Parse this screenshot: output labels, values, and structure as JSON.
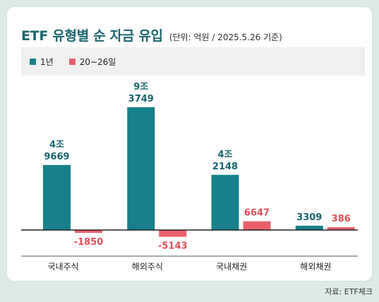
{
  "title": "ETF 유형별 순 자금 유입",
  "subtitle": "(단위: 억원 / 2025.5.26 기준)",
  "source": "자료: ETF체크",
  "colors": {
    "background": "#dcebe8",
    "series_1y": "#17808a",
    "series_recent": "#e8606a",
    "title": "#17666e"
  },
  "chart_data": {
    "type": "bar",
    "categories": [
      "국내주식",
      "해외주식",
      "국내채권",
      "해외채권"
    ],
    "series": [
      {
        "name": "1년",
        "values": [
          49669,
          93749,
          42148,
          3309
        ],
        "labels": [
          [
            "4조",
            "9669"
          ],
          [
            "9조",
            "3749"
          ],
          [
            "4조",
            "2148"
          ],
          [
            "3309"
          ]
        ]
      },
      {
        "name": "20~26일",
        "values": [
          -1850,
          -5143,
          6647,
          386
        ],
        "labels": [
          [
            "-1850"
          ],
          [
            "-5143"
          ],
          [
            "6647"
          ],
          [
            "386"
          ]
        ]
      }
    ],
    "ylim": [
      -12000,
      100000
    ],
    "legend": "top-left",
    "grid": false
  }
}
